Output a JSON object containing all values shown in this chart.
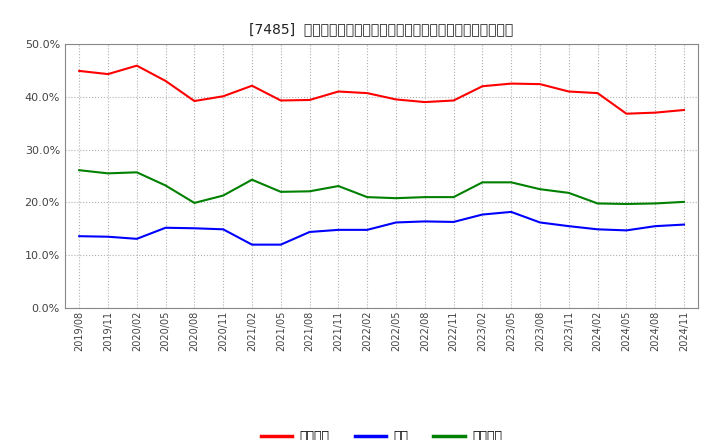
{
  "title": "[7485]  売上債権、在庫、買入債務の総資産に対する比率の推移",
  "ylim": [
    0.0,
    0.5
  ],
  "yticks": [
    0.0,
    0.1,
    0.2,
    0.3,
    0.4,
    0.5
  ],
  "background_color": "#ffffff",
  "plot_bg_color": "#ffffff",
  "grid_color": "#b0b0b0",
  "legend_labels": [
    "売上債権",
    "在庫",
    "買入債務"
  ],
  "line_colors": [
    "#ff0000",
    "#0000ff",
    "#008000"
  ],
  "dates": [
    "2019/08",
    "2019/11",
    "2020/02",
    "2020/05",
    "2020/08",
    "2020/11",
    "2021/02",
    "2021/05",
    "2021/08",
    "2021/11",
    "2022/02",
    "2022/05",
    "2022/08",
    "2022/11",
    "2023/02",
    "2023/05",
    "2023/08",
    "2023/11",
    "2024/02",
    "2024/05",
    "2024/08",
    "2024/11"
  ],
  "series_urikake": [
    0.449,
    0.443,
    0.459,
    0.43,
    0.392,
    0.401,
    0.421,
    0.393,
    0.394,
    0.41,
    0.407,
    0.395,
    0.39,
    0.393,
    0.42,
    0.425,
    0.424,
    0.41,
    0.407,
    0.368,
    0.37,
    0.375
  ],
  "series_zaiko": [
    0.136,
    0.135,
    0.131,
    0.152,
    0.151,
    0.149,
    0.12,
    0.12,
    0.144,
    0.148,
    0.148,
    0.162,
    0.164,
    0.163,
    0.177,
    0.182,
    0.162,
    0.155,
    0.149,
    0.147,
    0.155,
    0.158
  ],
  "series_kainyu": [
    0.261,
    0.255,
    0.257,
    0.232,
    0.199,
    0.213,
    0.243,
    0.22,
    0.221,
    0.231,
    0.21,
    0.208,
    0.21,
    0.21,
    0.238,
    0.238,
    0.225,
    0.218,
    0.198,
    0.197,
    0.198,
    0.201
  ]
}
